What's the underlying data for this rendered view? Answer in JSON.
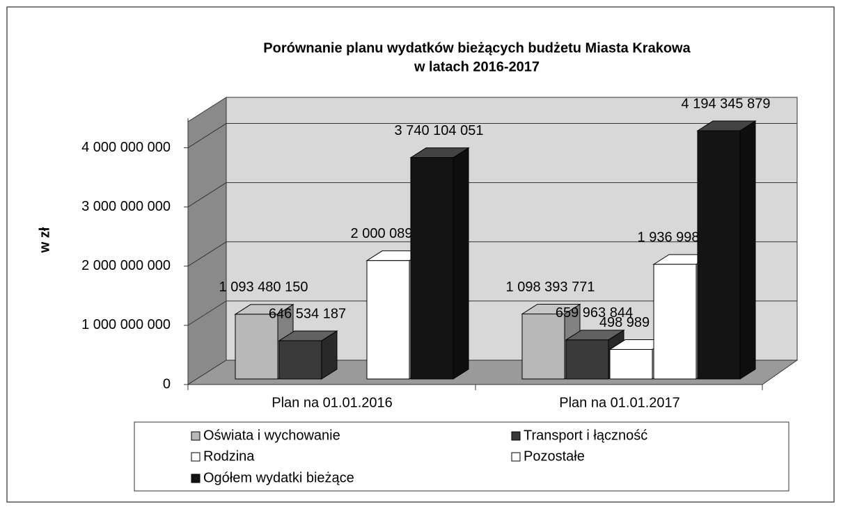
{
  "chart_data": {
    "type": "bar3d",
    "title": [
      "Porównanie planu wydatków bieżących budżetu Miasta Krakowa",
      "w latach 2016-2017"
    ],
    "y_label": "w zł",
    "categories": [
      "Plan na 01.01.2016",
      "Plan na 01.01.2017"
    ],
    "series": [
      {
        "name": "Oświata i wychowanie",
        "color": "#b8b8b8",
        "values": [
          1093480150,
          1098393771
        ],
        "value_labels": [
          "1 093 480 150",
          "1 098 393 771"
        ]
      },
      {
        "name": "Transport i łączność",
        "color": "#3a3a3a",
        "values": [
          646534187,
          659963844
        ],
        "value_labels": [
          "646 534 187",
          "659 963 844"
        ]
      },
      {
        "name": "Rodzina",
        "color": "#ffffff",
        "values": [
          null,
          498989421
        ],
        "value_labels": [
          null,
          "498 989 421"
        ]
      },
      {
        "name": "Pozostałe",
        "color": "#ffffff",
        "values": [
          2000089714,
          1936998843
        ],
        "value_labels": [
          "2 000 089 714",
          "1 936 998 843"
        ]
      },
      {
        "name": "Ogółem wydatki bieżące",
        "color": "#141414",
        "values": [
          3740104051,
          4194345879
        ],
        "value_labels": [
          "3 740 104 051",
          "4 194 345 879"
        ]
      }
    ],
    "ylim": [
      0,
      4500000000
    ],
    "yticks": [
      0,
      {
        "value": 1000000000,
        "label": "1 000 000 000"
      },
      {
        "value": 2000000000,
        "label": "2 000 000 000"
      },
      {
        "value": 3000000000,
        "label": "3 000 000 000"
      },
      {
        "value": 4000000000,
        "label": "4 000 000 000"
      }
    ],
    "grid": true,
    "legend": "bottom"
  }
}
